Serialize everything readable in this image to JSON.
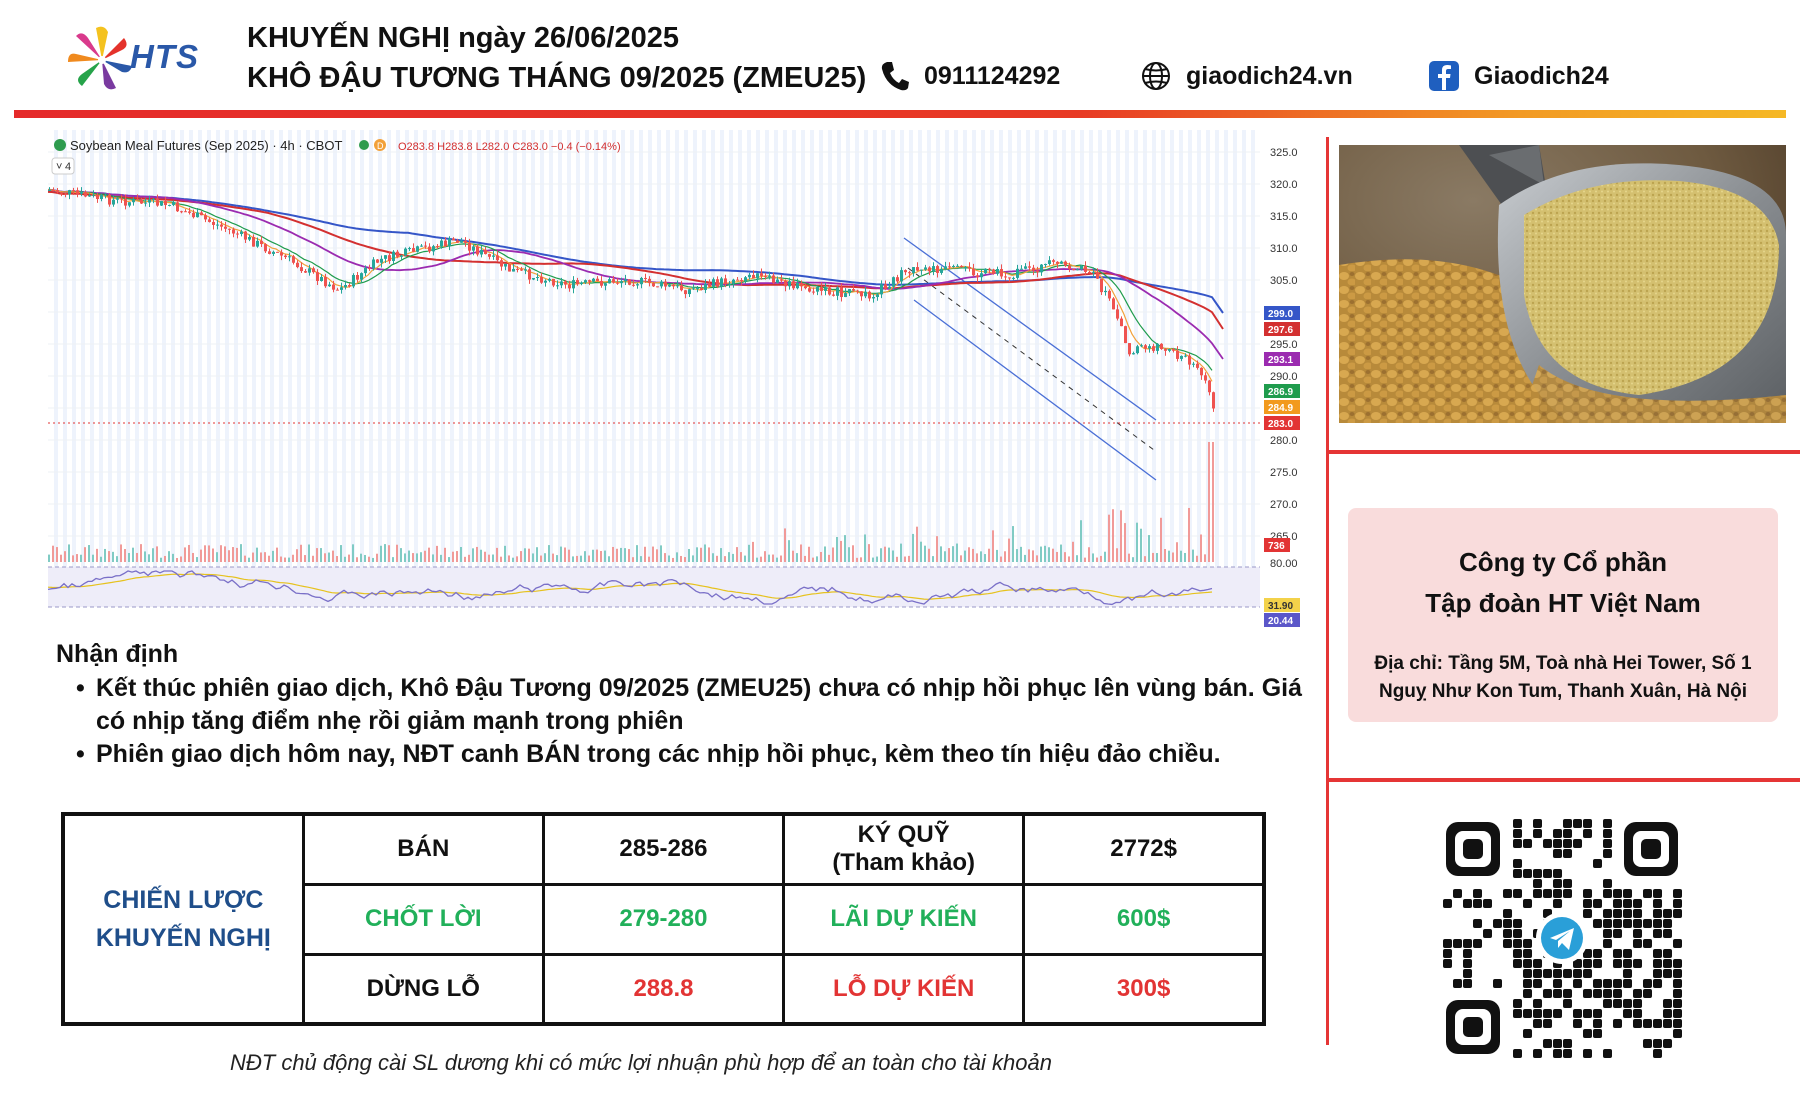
{
  "header": {
    "logo_text": "HTS",
    "title_line1": "KHUYẾN NGHỊ ngày 26/06/2025",
    "title_line2": "KHÔ ĐẬU TƯƠNG THÁNG 09/2025 (ZMEU25)",
    "phone": "0911124292",
    "website": "giaodich24.vn",
    "facebook": "Giaodich24",
    "icons": [
      "phone-icon",
      "globe-icon",
      "facebook-icon"
    ]
  },
  "chart": {
    "symbol_line": "Soybean Meal Futures (Sep 2025) · 4h · CBOT",
    "ohlc": "O283.8 H283.8 L282.0 C283.0 −0.4 (−0.14%)",
    "indicator_count": "4",
    "price_ticks": [
      "325.0",
      "320.0",
      "315.0",
      "310.0",
      "305.0",
      "295.0",
      "290.0",
      "280.0",
      "275.0",
      "270.0",
      "265.0"
    ],
    "price_badges": [
      {
        "value": "299.0",
        "color": "#3556c8"
      },
      {
        "value": "297.6",
        "color": "#d33030"
      },
      {
        "value": "293.1",
        "color": "#9b2bb0"
      },
      {
        "value": "286.9",
        "color": "#1f9c4d"
      },
      {
        "value": "284.9",
        "color": "#f29a1e"
      },
      {
        "value": "283.0",
        "color": "#e23434"
      }
    ],
    "volume_badge": "736",
    "rsi_ticks": [
      "80.00"
    ],
    "rsi_badges": [
      {
        "value": "31.90",
        "color": "#e6c21e"
      },
      {
        "value": "20.44",
        "color": "#5b57c9"
      }
    ]
  },
  "analysis": {
    "title": "Nhận định",
    "bullets": [
      "Kết thúc phiên giao dịch, Khô Đậu Tương 09/2025 (ZMEU25) chưa có nhịp hồi phục lên vùng bán. Giá có nhịp tăng điểm nhẹ rồi giảm mạnh trong phiên",
      "Phiên giao dịch hôm nay, NĐT canh BÁN trong các nhịp hồi phục, kèm theo tín hiệu đảo chiều."
    ]
  },
  "strategy": {
    "label_line1": "CHIẾN LƯỢC",
    "label_line2": "KHUYẾN NGHỊ",
    "action": "BÁN",
    "entry": "285-286",
    "margin_label_line1": "KÝ QUỸ",
    "margin_label_line2": "(Tham khảo)",
    "margin_value": "2772$",
    "take_profit_label": "CHỐT LỜI",
    "take_profit_value": "279-280",
    "expected_profit_label": "LÃI DỰ KIẾN",
    "expected_profit_value": "600$",
    "stop_loss_label": "DỪNG LỖ",
    "stop_loss_value": "288.8",
    "expected_loss_label": "LỖ DỰ KIẾN",
    "expected_loss_value": "300$"
  },
  "footnote": "NĐT chủ động cài SL dương khi có mức lợi nhuận phù hợp để an toàn cho tài khoản",
  "company": {
    "name_line1": "Công ty Cổ phần",
    "name_line2": "Tập đoàn HT Việt Nam",
    "address_line1": "Địa chỉ: Tầng 5M, Toà nhà Hei Tower, Số 1",
    "address_line2": "Nguỵ Như Kon Tum, Thanh Xuân, Hà Nội"
  }
}
